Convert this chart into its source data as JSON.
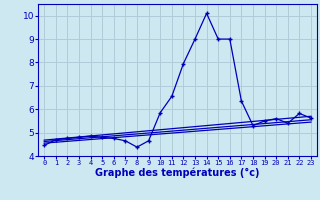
{
  "title": "Graphe des températures (°c)",
  "bg_color": "#cde8f0",
  "grid_color": "#b0ccd8",
  "line_color": "#0000bb",
  "xlim": [
    -0.5,
    23.5
  ],
  "ylim": [
    4,
    10.5
  ],
  "yticks": [
    4,
    5,
    6,
    7,
    8,
    9,
    10
  ],
  "xticks": [
    0,
    1,
    2,
    3,
    4,
    5,
    6,
    7,
    8,
    9,
    10,
    11,
    12,
    13,
    14,
    15,
    16,
    17,
    18,
    19,
    20,
    21,
    22,
    23
  ],
  "main_x": [
    0,
    1,
    2,
    3,
    4,
    5,
    6,
    7,
    8,
    9,
    10,
    11,
    12,
    13,
    14,
    15,
    16,
    17,
    18,
    19,
    20,
    21,
    22,
    23
  ],
  "main_y": [
    4.45,
    4.7,
    4.75,
    4.8,
    4.85,
    4.8,
    4.75,
    4.65,
    4.38,
    4.65,
    5.85,
    6.55,
    7.95,
    9.0,
    10.1,
    9.0,
    9.0,
    6.35,
    5.3,
    5.5,
    5.6,
    5.4,
    5.82,
    5.62
  ],
  "trend1_x": [
    0,
    23
  ],
  "trend1_y": [
    4.55,
    5.45
  ],
  "trend2_x": [
    0,
    23
  ],
  "trend2_y": [
    4.62,
    5.55
  ],
  "trend3_x": [
    0,
    23
  ],
  "trend3_y": [
    4.68,
    5.7
  ]
}
